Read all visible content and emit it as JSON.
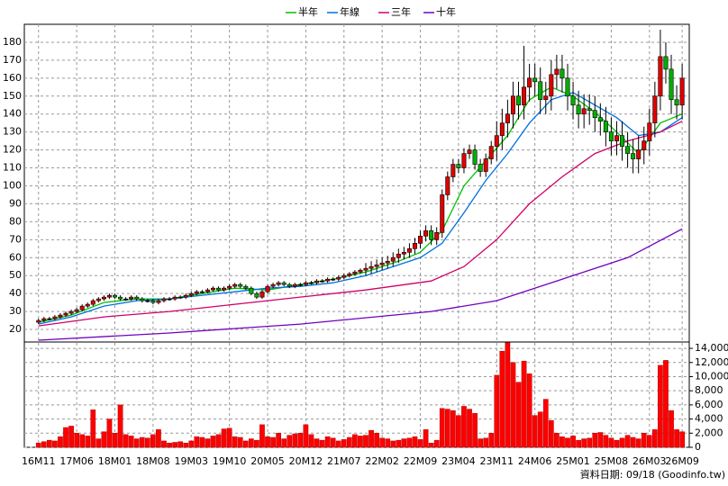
{
  "chart_data": {
    "type": "candlestick",
    "legend": "top",
    "grid": true,
    "xlim": [
      -2.6,
      119.3
    ],
    "categories": [
      "16M11",
      null,
      null,
      null,
      null,
      null,
      null,
      "17M06",
      null,
      null,
      null,
      null,
      null,
      null,
      "18M01",
      null,
      null,
      null,
      null,
      null,
      null,
      "18M08",
      null,
      null,
      null,
      null,
      null,
      null,
      "19M03",
      null,
      null,
      null,
      null,
      null,
      null,
      "19M10",
      null,
      null,
      null,
      null,
      null,
      null,
      "20M05",
      null,
      null,
      null,
      null,
      null,
      null,
      "20M12",
      null,
      null,
      null,
      null,
      null,
      null,
      "21M07",
      null,
      null,
      null,
      null,
      null,
      null,
      "22M02",
      null,
      null,
      null,
      null,
      null,
      null,
      "22M09",
      null,
      null,
      null,
      null,
      null,
      null,
      "23M04",
      null,
      null,
      null,
      null,
      null,
      null,
      "23M11",
      null,
      null,
      null,
      null,
      null,
      null,
      "24M06",
      null,
      null,
      null,
      null,
      null,
      null,
      "25M01",
      null,
      null,
      null,
      null,
      null,
      null,
      "25M08",
      null,
      null,
      null,
      null,
      null,
      null,
      "26M03",
      null,
      null,
      null,
      null,
      null,
      "26M09"
    ],
    "ylim": [
      13,
      190
    ],
    "yticks": [
      20,
      30,
      40,
      50,
      60,
      70,
      80,
      90,
      100,
      110,
      120,
      130,
      140,
      150,
      160,
      170,
      180
    ],
    "y2lim": [
      0,
      14900
    ],
    "y2ticks": [
      0,
      {
        "value": 2000,
        "label": "2,000"
      },
      {
        "value": 4000,
        "label": "4,000"
      },
      {
        "value": 6000,
        "label": "6,000"
      },
      {
        "value": 8000,
        "label": "8,000"
      },
      {
        "value": 10000,
        "label": "10,000"
      },
      {
        "value": 12000,
        "label": "12,000"
      },
      {
        "value": 14000,
        "label": "14,000"
      }
    ],
    "up_color": "#e00000",
    "down_color": "#00b000",
    "volume_color": "#ff0000",
    "open": [
      24,
      25,
      26,
      26,
      27,
      28,
      29,
      30,
      31,
      33,
      34,
      36,
      37,
      38,
      39,
      38,
      37,
      37,
      38,
      37,
      36,
      36,
      35,
      36,
      37,
      37,
      38,
      38,
      39,
      40,
      41,
      41,
      42,
      43,
      42,
      43,
      44,
      45,
      44,
      43,
      40,
      38,
      41,
      44,
      45,
      46,
      45,
      44,
      45,
      45,
      46,
      46,
      47,
      47,
      48,
      48,
      49,
      50,
      51,
      52,
      53,
      54,
      55,
      56,
      57,
      58,
      60,
      62,
      63,
      65,
      68,
      72,
      75,
      70,
      74,
      95,
      105,
      112,
      110,
      118,
      120,
      112,
      108,
      115,
      122,
      128,
      135,
      140,
      150,
      145,
      155,
      160,
      158,
      148,
      150,
      162,
      165,
      160,
      150,
      145,
      140,
      143,
      142,
      138,
      136,
      130,
      125,
      128,
      122,
      118,
      115,
      120,
      125,
      135,
      150,
      172,
      165,
      148,
      145
    ],
    "high": [
      26,
      27,
      27,
      28,
      29,
      30,
      31,
      32,
      34,
      35,
      37,
      38,
      39,
      40,
      40,
      39,
      38,
      39,
      39,
      38,
      37,
      37,
      37,
      38,
      38,
      39,
      39,
      40,
      41,
      42,
      42,
      43,
      44,
      44,
      44,
      45,
      46,
      46,
      45,
      44,
      41,
      42,
      45,
      46,
      47,
      47,
      46,
      46,
      46,
      47,
      47,
      48,
      48,
      49,
      49,
      50,
      51,
      52,
      53,
      54,
      57,
      58,
      59,
      60,
      61,
      63,
      65,
      66,
      68,
      71,
      75,
      78,
      78,
      77,
      98,
      108,
      115,
      115,
      121,
      123,
      123,
      115,
      118,
      125,
      136,
      143,
      148,
      158,
      158,
      178,
      168,
      168,
      166,
      158,
      170,
      173,
      173,
      168,
      158,
      153,
      151,
      151,
      150,
      146,
      144,
      138,
      136,
      136,
      130,
      126,
      128,
      133,
      143,
      158,
      187,
      180,
      173,
      156,
      168
    ],
    "low": [
      23,
      24,
      25,
      25,
      26,
      27,
      28,
      29,
      30,
      32,
      33,
      35,
      36,
      37,
      37,
      36,
      36,
      36,
      36,
      35,
      35,
      34,
      34,
      35,
      36,
      36,
      37,
      37,
      38,
      39,
      40,
      40,
      41,
      41,
      41,
      42,
      43,
      43,
      42,
      39,
      37,
      37,
      40,
      43,
      44,
      44,
      43,
      43,
      44,
      44,
      45,
      45,
      46,
      46,
      47,
      47,
      48,
      49,
      50,
      51,
      50,
      51,
      52,
      53,
      54,
      55,
      57,
      59,
      60,
      62,
      65,
      69,
      67,
      67,
      71,
      92,
      102,
      107,
      107,
      115,
      109,
      105,
      105,
      112,
      114,
      120,
      127,
      132,
      137,
      137,
      147,
      150,
      140,
      140,
      142,
      154,
      152,
      142,
      137,
      132,
      132,
      134,
      130,
      128,
      122,
      117,
      117,
      114,
      110,
      107,
      107,
      112,
      117,
      127,
      142,
      157,
      140,
      137,
      137
    ],
    "close": [
      25,
      26,
      26,
      27,
      28,
      29,
      30,
      31,
      33,
      34,
      36,
      37,
      38,
      39,
      38,
      37,
      37,
      38,
      37,
      36,
      36,
      35,
      36,
      37,
      37,
      38,
      38,
      39,
      40,
      41,
      41,
      42,
      43,
      42,
      43,
      44,
      45,
      44,
      43,
      40,
      38,
      41,
      44,
      45,
      46,
      45,
      44,
      45,
      45,
      46,
      46,
      47,
      47,
      48,
      48,
      49,
      50,
      51,
      52,
      53,
      54,
      55,
      56,
      57,
      58,
      60,
      62,
      63,
      65,
      68,
      72,
      75,
      70,
      74,
      95,
      105,
      112,
      110,
      118,
      120,
      112,
      108,
      115,
      122,
      128,
      135,
      140,
      150,
      145,
      155,
      160,
      158,
      148,
      150,
      162,
      165,
      160,
      150,
      145,
      140,
      143,
      142,
      138,
      136,
      130,
      125,
      128,
      122,
      118,
      115,
      120,
      125,
      135,
      150,
      172,
      165,
      148,
      145,
      160
    ],
    "volume": [
      600,
      800,
      1000,
      900,
      1500,
      2800,
      3000,
      2000,
      1800,
      1600,
      5300,
      1200,
      2200,
      4000,
      2000,
      6000,
      1800,
      1600,
      1200,
      1400,
      1300,
      1800,
      2500,
      900,
      600,
      700,
      800,
      600,
      900,
      1500,
      1400,
      1200,
      1600,
      1800,
      2600,
      2700,
      1500,
      1400,
      900,
      1200,
      1000,
      3200,
      1500,
      1400,
      2000,
      1200,
      1700,
      1900,
      2000,
      3200,
      1800,
      1200,
      1000,
      1500,
      1300,
      900,
      1100,
      1400,
      1800,
      1600,
      1700,
      2400,
      2000,
      1300,
      1200,
      900,
      1000,
      1200,
      1300,
      1500,
      1100,
      2500,
      600,
      1000,
      5500,
      5400,
      5200,
      4500,
      5800,
      5400,
      4800,
      1200,
      1300,
      2000,
      10200,
      13600,
      14800,
      12000,
      9200,
      12200,
      10400,
      4500,
      5000,
      6800,
      3800,
      2000,
      1500,
      1300,
      1600,
      1000,
      1200,
      1300,
      2000,
      2100,
      1700,
      1300,
      1000,
      1300,
      1700,
      1400,
      1200,
      2000,
      1700,
      2500,
      11600,
      12300,
      5200,
      2500,
      2200
    ],
    "series": [
      {
        "name": "半年",
        "color": "#00c000",
        "x": [
          0,
          6,
          12,
          18,
          24,
          30,
          36,
          42,
          48,
          54,
          60,
          66,
          70,
          74,
          78,
          82,
          86,
          90,
          94,
          98,
          102,
          106,
          110,
          114,
          118
        ],
        "values": [
          24,
          28,
          35,
          37,
          37,
          40,
          43,
          42,
          45,
          48,
          52,
          58,
          63,
          75,
          100,
          114,
          128,
          148,
          155,
          150,
          141,
          130,
          118,
          135,
          140
        ]
      },
      {
        "name": "年線",
        "color": "#0070e0",
        "x": [
          0,
          6,
          12,
          18,
          24,
          30,
          36,
          42,
          48,
          54,
          60,
          66,
          70,
          74,
          78,
          82,
          86,
          90,
          94,
          98,
          102,
          106,
          110,
          114,
          118
        ],
        "values": [
          23,
          27,
          33,
          36,
          37,
          39,
          41,
          43,
          44,
          46,
          50,
          56,
          60,
          68,
          85,
          103,
          118,
          135,
          148,
          152,
          145,
          138,
          128,
          130,
          138
        ]
      },
      {
        "name": "三年",
        "color": "#d0006a",
        "x": [
          0,
          12,
          24,
          36,
          48,
          60,
          72,
          78,
          84,
          90,
          96,
          102,
          108,
          114,
          118
        ],
        "values": [
          22,
          27,
          30,
          34,
          38,
          42,
          47,
          55,
          70,
          90,
          105,
          118,
          125,
          130,
          136
        ]
      },
      {
        "name": "十年",
        "color": "#7000c0",
        "x": [
          0,
          24,
          48,
          72,
          84,
          96,
          108,
          118
        ],
        "values": [
          14,
          18,
          23,
          30,
          36,
          48,
          60,
          76
        ]
      }
    ],
    "footer": "資料日期: 09/18 (Goodinfo.tw)"
  }
}
